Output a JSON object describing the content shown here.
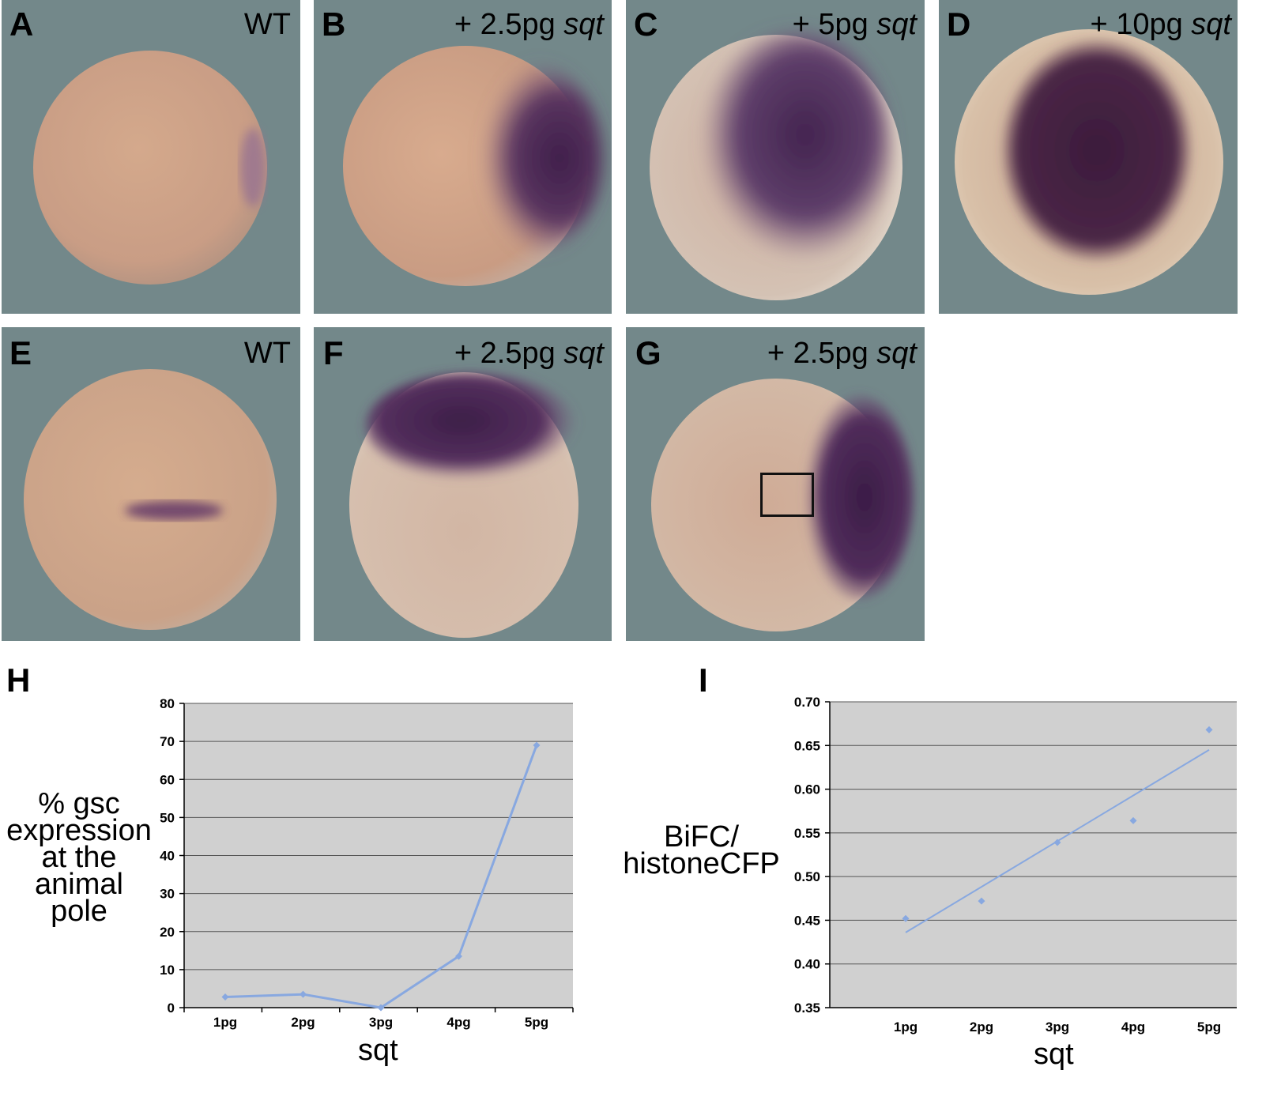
{
  "panels": [
    {
      "label": "A",
      "prefix": "",
      "sub": "WT",
      "italic": ""
    },
    {
      "label": "B",
      "prefix": "+ ",
      "sub": "2.5pg ",
      "italic": "sqt"
    },
    {
      "label": "C",
      "prefix": "+ ",
      "sub": "5pg ",
      "italic": "sqt"
    },
    {
      "label": "D",
      "prefix": "+ ",
      "sub": "10pg ",
      "italic": "sqt"
    },
    {
      "label": "E",
      "prefix": "",
      "sub": "WT",
      "italic": ""
    },
    {
      "label": "F",
      "prefix": "+ ",
      "sub": "2.5pg ",
      "italic": "sqt"
    },
    {
      "label": "G",
      "prefix": "+ ",
      "sub": "2.5pg ",
      "italic": "sqt"
    }
  ],
  "chart_data": [
    {
      "panel_label": "H",
      "type": "line",
      "categories": [
        "1pg",
        "2pg",
        "3pg",
        "4pg",
        "5pg"
      ],
      "values": [
        2.8,
        3.5,
        0.0,
        13.5,
        69.0
      ],
      "xlabel": "sqt",
      "ylabel_lines": [
        "% gsc",
        "expression",
        "at the",
        "animal",
        "pole"
      ],
      "ylim": [
        0,
        80
      ],
      "yticks": [
        "0",
        "10",
        "20",
        "30",
        "40",
        "50",
        "60",
        "70",
        "80"
      ],
      "grid": true,
      "series_color": "#88a8e0",
      "plot_bg": "#d0d0d0"
    },
    {
      "panel_label": "I",
      "type": "scatter",
      "categories": [
        "1pg",
        "2pg",
        "3pg",
        "4pg",
        "5pg"
      ],
      "values": [
        0.452,
        0.472,
        0.539,
        0.564,
        0.668
      ],
      "trendline": [
        0.436,
        0.645
      ],
      "xlabel": "sqt",
      "ylabel_lines": [
        "BiFC/",
        "histoneCFP"
      ],
      "ylim": [
        0.35,
        0.7
      ],
      "yticks": [
        "0.35",
        "0.40",
        "0.45",
        "0.50",
        "0.55",
        "0.60",
        "0.65",
        "0.70"
      ],
      "grid": true,
      "series_color": "#88a8e0",
      "plot_bg": "#d0d0d0"
    }
  ]
}
